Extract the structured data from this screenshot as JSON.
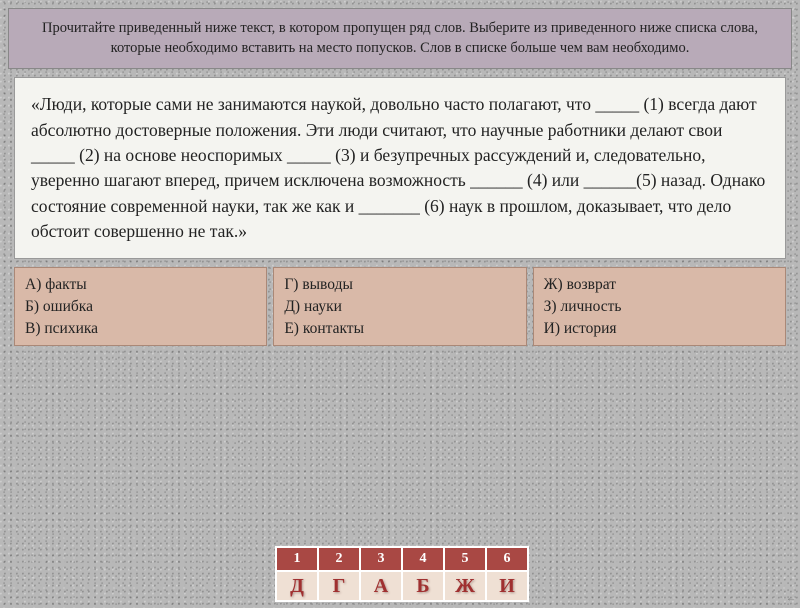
{
  "header": {
    "text": "Прочитайте приведенный ниже текст, в котором пропущен ряд слов. Выберите из приведенного ниже списка слова, которые необходимо вставить на место попусков. Слов в списке больше чем вам необходимо."
  },
  "body": {
    "text": "«Люди, которые сами не занимаются наукой, довольно часто полагают, что _____ (1) всегда дают абсолютно достоверные положения. Эти люди считают, что научные работники делают свои  _____ (2) на основе неоспоримых _____ (3)  и безупречных рассуждений и, следовательно, уверенно шагают вперед, причем исключена возможность ______ (4) или ______(5) назад.  Однако состояние современной науки, так же как и _______ (6) наук в прошлом, доказывает, что дело обстоит совершенно не так.»"
  },
  "options": {
    "col1": "А) факты\nБ) ошибка\nВ) психика",
    "col2": "Г) выводы\nД) науки\nЕ) контакты",
    "col3": "Ж) возврат\nЗ) личность\nИ) история"
  },
  "answers": {
    "numbers": [
      "1",
      "2",
      "3",
      "4",
      "5",
      "6"
    ],
    "letters": [
      "Д",
      "Г",
      "А",
      "Б",
      "Ж",
      "И"
    ]
  },
  "styling": {
    "header_bg": "#b8aab8",
    "body_bg": "#f4f4f0",
    "option_bg": "#d9b9a8",
    "num_row_bg": "#a94844",
    "let_row_bg": "#efe0d4",
    "let_color": "#a03030",
    "page_bg": "#b8b8b8",
    "body_fontsize": 17.5,
    "header_fontsize": 14.5,
    "option_fontsize": 15.5
  },
  "corner": "←"
}
